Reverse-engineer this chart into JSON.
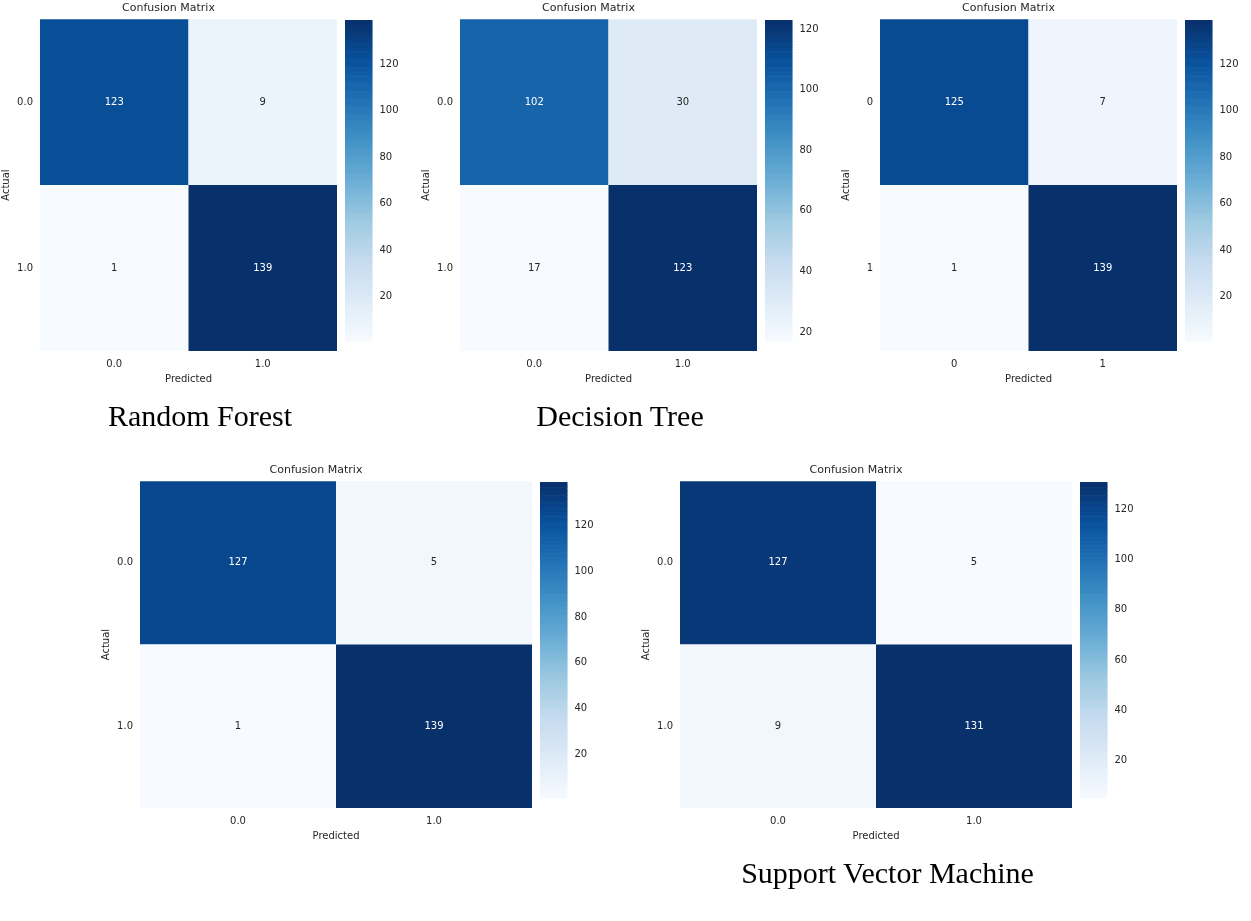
{
  "chart_data": [
    {
      "type": "heatmap",
      "title": "Confusion Matrix",
      "xlabel": "Predicted",
      "ylabel": "Actual",
      "categories": [
        "0.0",
        "1.0"
      ],
      "y_categories": [
        "0.0",
        "1.0"
      ],
      "cells": [
        [
          123,
          9
        ],
        [
          1,
          139
        ]
      ],
      "clim": [
        1,
        139
      ],
      "cticks": [
        20,
        40,
        60,
        80,
        100,
        120
      ],
      "data_labels": true,
      "annotations": [
        "Random Forest"
      ]
    },
    {
      "type": "heatmap",
      "title": "Confusion Matrix",
      "xlabel": "Predicted",
      "ylabel": "Actual",
      "categories": [
        "0.0",
        "1.0"
      ],
      "y_categories": [
        "0.0",
        "1.0"
      ],
      "cells": [
        [
          102,
          30
        ],
        [
          17,
          123
        ]
      ],
      "clim": [
        17,
        123
      ],
      "cticks": [
        20,
        40,
        60,
        80,
        100,
        120
      ],
      "data_labels": true,
      "annotations": [
        "Decision Tree"
      ]
    },
    {
      "type": "heatmap",
      "title": "Confusion Matrix",
      "xlabel": "Predicted",
      "ylabel": "Actual",
      "categories": [
        "0",
        "1"
      ],
      "y_categories": [
        "0",
        "1"
      ],
      "cells": [
        [
          125,
          7
        ],
        [
          1,
          139
        ]
      ],
      "clim": [
        1,
        139
      ],
      "cticks": [
        20,
        40,
        60,
        80,
        100,
        120
      ],
      "data_labels": true
    },
    {
      "type": "heatmap",
      "title": "Confusion Matrix",
      "xlabel": "Predicted",
      "ylabel": "Actual",
      "categories": [
        "0.0",
        "1.0"
      ],
      "y_categories": [
        "0.0",
        "1.0"
      ],
      "cells": [
        [
          127,
          5
        ],
        [
          1,
          139
        ]
      ],
      "clim": [
        1,
        139
      ],
      "cticks": [
        20,
        40,
        60,
        80,
        100,
        120
      ],
      "data_labels": true
    },
    {
      "type": "heatmap",
      "title": "Confusion Matrix",
      "xlabel": "Predicted",
      "ylabel": "Actual",
      "categories": [
        "0.0",
        "1.0"
      ],
      "y_categories": [
        "0.0",
        "1.0"
      ],
      "cells": [
        [
          127,
          5
        ],
        [
          9,
          131
        ]
      ],
      "clim": [
        5,
        131
      ],
      "cticks": [
        20,
        40,
        60,
        80,
        100,
        120
      ],
      "data_labels": true,
      "annotations": [
        "Support Vector Machine"
      ]
    }
  ]
}
